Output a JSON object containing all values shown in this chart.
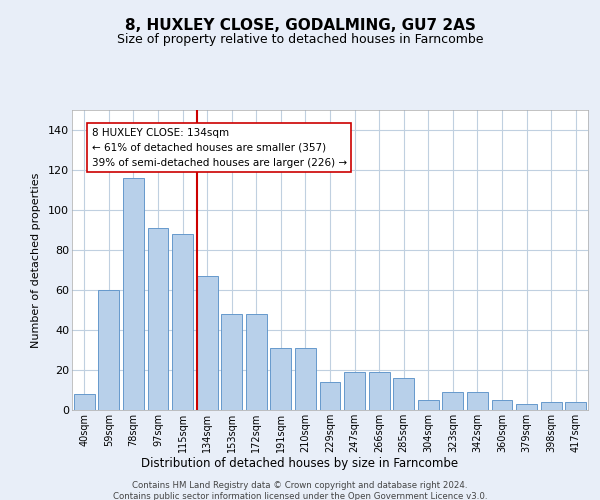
{
  "title": "8, HUXLEY CLOSE, GODALMING, GU7 2AS",
  "subtitle": "Size of property relative to detached houses in Farncombe",
  "xlabel": "Distribution of detached houses by size in Farncombe",
  "ylabel": "Number of detached properties",
  "categories": [
    "40sqm",
    "59sqm",
    "78sqm",
    "97sqm",
    "115sqm",
    "134sqm",
    "153sqm",
    "172sqm",
    "191sqm",
    "210sqm",
    "229sqm",
    "247sqm",
    "266sqm",
    "285sqm",
    "304sqm",
    "323sqm",
    "342sqm",
    "360sqm",
    "379sqm",
    "398sqm",
    "417sqm"
  ],
  "values": [
    8,
    60,
    116,
    91,
    88,
    67,
    48,
    48,
    31,
    31,
    14,
    19,
    19,
    16,
    5,
    9,
    9,
    5,
    3,
    4,
    4
  ],
  "bar_color": "#b8d0ea",
  "bar_edge_color": "#6699cc",
  "vline_color": "#cc0000",
  "vline_pos": 5,
  "annotation_text": "8 HUXLEY CLOSE: 134sqm\n← 61% of detached houses are smaller (357)\n39% of semi-detached houses are larger (226) →",
  "annotation_box_facecolor": "#ffffff",
  "annotation_box_edgecolor": "#cc0000",
  "ylim": [
    0,
    150
  ],
  "yticks": [
    0,
    20,
    40,
    60,
    80,
    100,
    120,
    140
  ],
  "fig_bgcolor": "#e8eef8",
  "ax_bgcolor": "#ffffff",
  "grid_color": "#c0d0e0",
  "footer1": "Contains HM Land Registry data © Crown copyright and database right 2024.",
  "footer2": "Contains public sector information licensed under the Open Government Licence v3.0.",
  "title_fontsize": 11,
  "subtitle_fontsize": 9,
  "xlabel_fontsize": 8.5,
  "ylabel_fontsize": 8,
  "tick_fontsize": 7,
  "annotation_fontsize": 7.5,
  "footer_fontsize": 6.2
}
